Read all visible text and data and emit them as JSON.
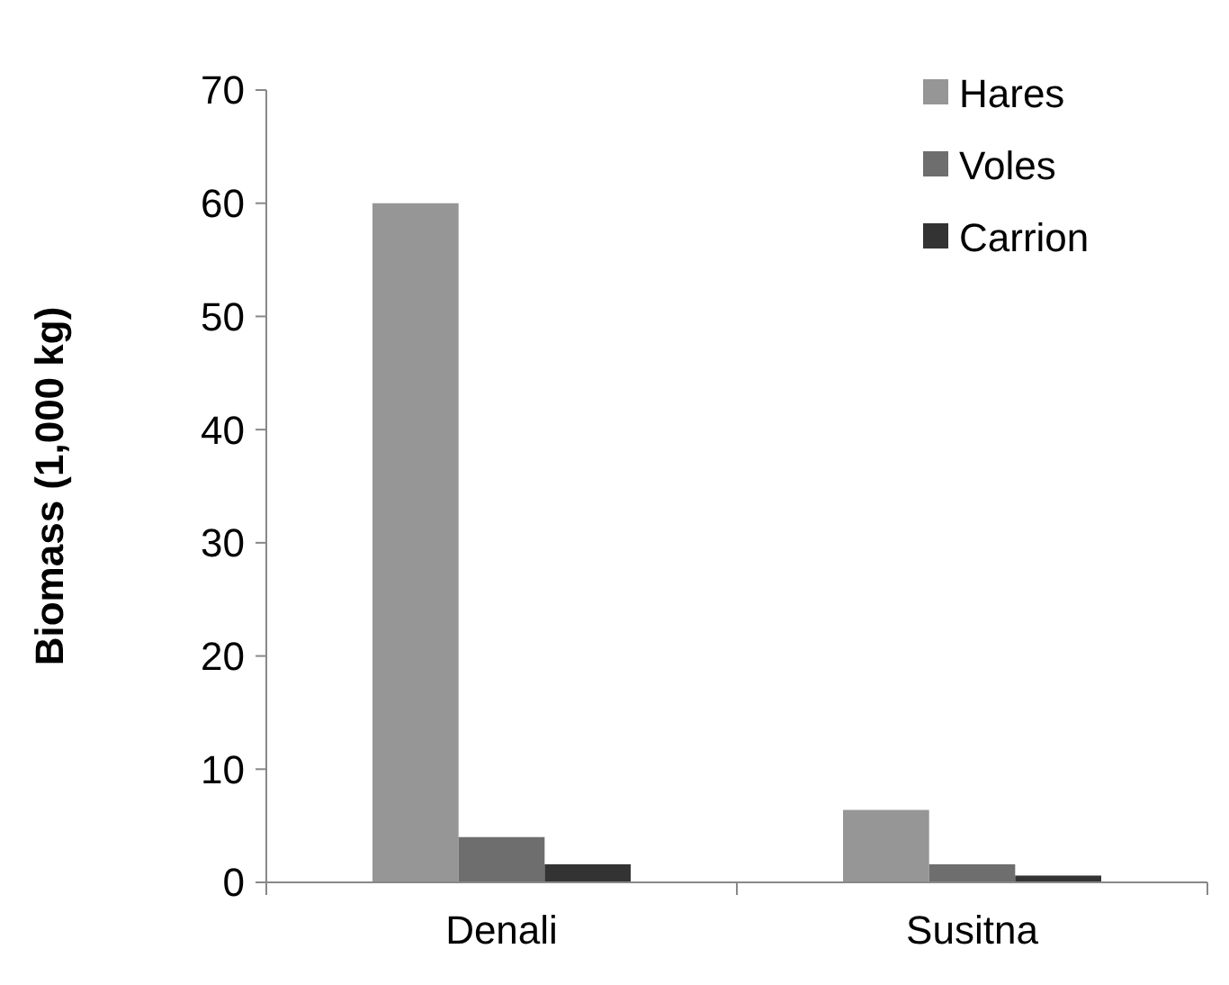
{
  "chart_data": {
    "type": "bar",
    "ylabel": "Biomass (1,000 kg)",
    "categories": [
      "Denali",
      "Susitna"
    ],
    "series": [
      {
        "name": "Hares",
        "color": "#969696",
        "values": [
          60,
          6.4
        ]
      },
      {
        "name": "Voles",
        "color": "#6e6e6e",
        "values": [
          4,
          1.6
        ]
      },
      {
        "name": "Carrion",
        "color": "#333333",
        "values": [
          1.6,
          0.6
        ]
      }
    ],
    "ylim": [
      0,
      70
    ],
    "yticks": [
      0,
      10,
      20,
      30,
      40,
      50,
      60,
      70
    ],
    "legend": "top right",
    "grid": false
  }
}
